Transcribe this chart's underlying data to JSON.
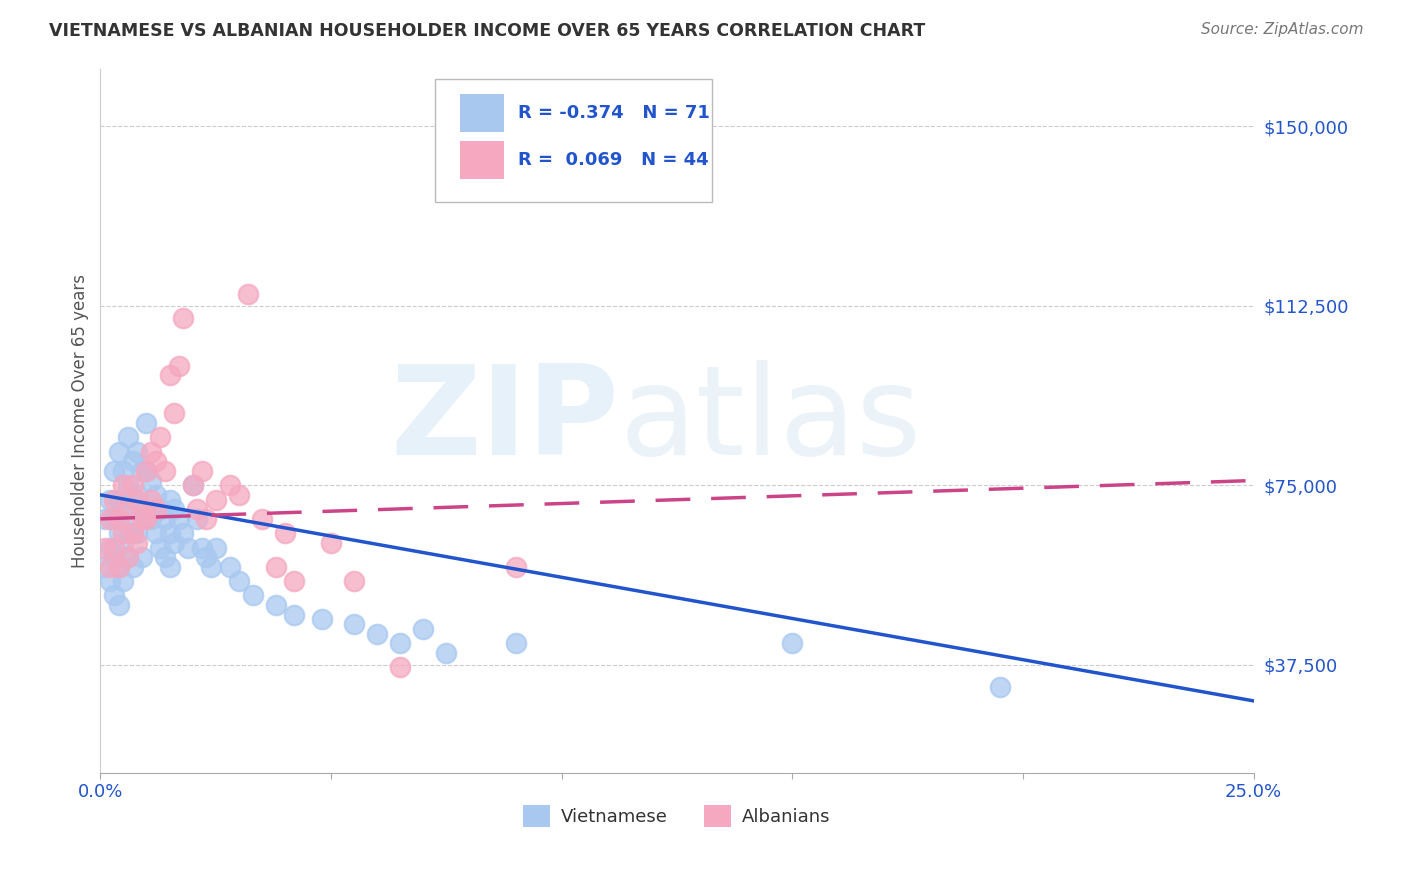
{
  "title": "VIETNAMESE VS ALBANIAN HOUSEHOLDER INCOME OVER 65 YEARS CORRELATION CHART",
  "source": "Source: ZipAtlas.com",
  "ylabel": "Householder Income Over 65 years",
  "xlim": [
    0.0,
    0.25
  ],
  "ylim": [
    15000,
    162000
  ],
  "yticks": [
    37500,
    75000,
    112500,
    150000
  ],
  "ytick_labels": [
    "$37,500",
    "$75,000",
    "$112,500",
    "$150,000"
  ],
  "xticks": [
    0.0,
    0.05,
    0.1,
    0.15,
    0.2,
    0.25
  ],
  "xtick_labels": [
    "0.0%",
    "",
    "",
    "",
    "",
    "25.0%"
  ],
  "vietnamese_color": "#a8c8f0",
  "albanian_color": "#f5a8c0",
  "vietnamese_line_color": "#2255cc",
  "albanian_line_color": "#cc4488",
  "R_vietnamese": -0.374,
  "N_vietnamese": 71,
  "R_albanian": 0.069,
  "N_albanian": 44,
  "background_color": "#ffffff",
  "grid_color": "#cccccc",
  "vietnamese_x": [
    0.001,
    0.001,
    0.002,
    0.002,
    0.002,
    0.003,
    0.003,
    0.003,
    0.003,
    0.004,
    0.004,
    0.004,
    0.004,
    0.004,
    0.005,
    0.005,
    0.005,
    0.005,
    0.006,
    0.006,
    0.006,
    0.006,
    0.007,
    0.007,
    0.007,
    0.007,
    0.008,
    0.008,
    0.008,
    0.009,
    0.009,
    0.009,
    0.01,
    0.01,
    0.01,
    0.011,
    0.011,
    0.012,
    0.012,
    0.013,
    0.013,
    0.014,
    0.014,
    0.015,
    0.015,
    0.015,
    0.016,
    0.016,
    0.017,
    0.018,
    0.019,
    0.02,
    0.021,
    0.022,
    0.023,
    0.024,
    0.025,
    0.028,
    0.03,
    0.033,
    0.038,
    0.042,
    0.048,
    0.055,
    0.06,
    0.065,
    0.07,
    0.075,
    0.09,
    0.15,
    0.195
  ],
  "vietnamese_y": [
    68000,
    58000,
    72000,
    62000,
    55000,
    78000,
    68000,
    60000,
    52000,
    82000,
    72000,
    65000,
    58000,
    50000,
    78000,
    70000,
    63000,
    55000,
    85000,
    75000,
    67000,
    60000,
    80000,
    72000,
    65000,
    58000,
    82000,
    73000,
    65000,
    78000,
    70000,
    60000,
    88000,
    78000,
    68000,
    76000,
    68000,
    73000,
    65000,
    70000,
    62000,
    68000,
    60000,
    72000,
    65000,
    58000,
    70000,
    63000,
    68000,
    65000,
    62000,
    75000,
    68000,
    62000,
    60000,
    58000,
    62000,
    58000,
    55000,
    52000,
    50000,
    48000,
    47000,
    46000,
    44000,
    42000,
    45000,
    40000,
    42000,
    42000,
    33000
  ],
  "albanian_x": [
    0.001,
    0.002,
    0.002,
    0.003,
    0.003,
    0.004,
    0.004,
    0.005,
    0.005,
    0.006,
    0.006,
    0.007,
    0.007,
    0.008,
    0.008,
    0.009,
    0.01,
    0.01,
    0.011,
    0.011,
    0.012,
    0.012,
    0.013,
    0.014,
    0.015,
    0.016,
    0.017,
    0.018,
    0.02,
    0.021,
    0.022,
    0.023,
    0.025,
    0.028,
    0.03,
    0.032,
    0.035,
    0.038,
    0.04,
    0.042,
    0.05,
    0.055,
    0.065,
    0.09
  ],
  "albanian_y": [
    62000,
    68000,
    58000,
    72000,
    62000,
    68000,
    58000,
    75000,
    65000,
    70000,
    60000,
    75000,
    65000,
    72000,
    63000,
    68000,
    78000,
    68000,
    82000,
    72000,
    80000,
    70000,
    85000,
    78000,
    98000,
    90000,
    100000,
    110000,
    75000,
    70000,
    78000,
    68000,
    72000,
    75000,
    73000,
    115000,
    68000,
    58000,
    65000,
    55000,
    63000,
    55000,
    37000,
    58000
  ]
}
